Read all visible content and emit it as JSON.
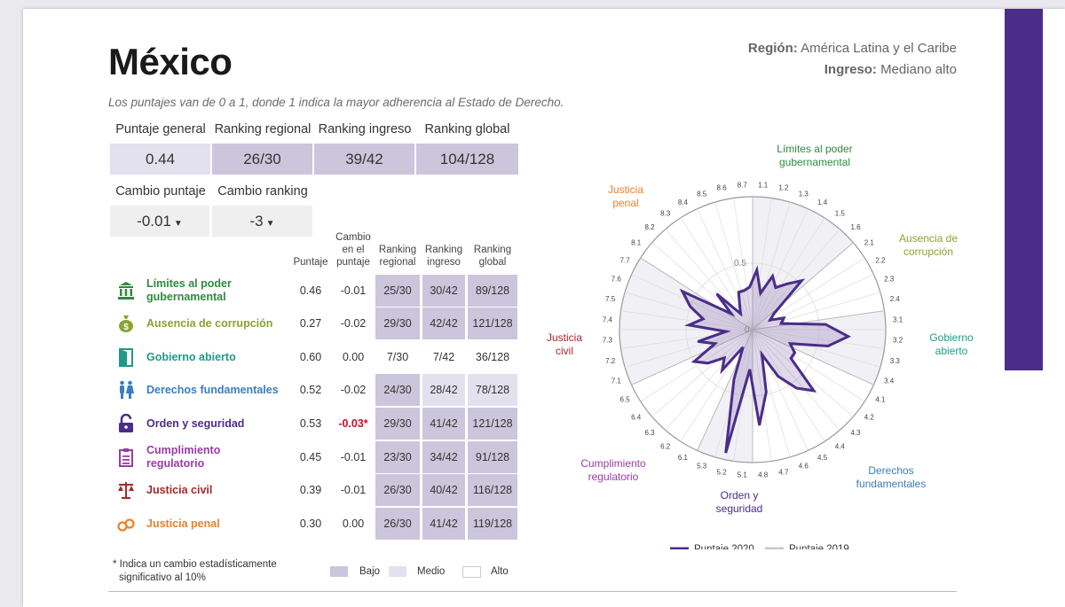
{
  "country": "México",
  "subtitle": "Los puntajes van de 0 a 1, donde 1 indica la mayor adherencia al Estado de Derecho.",
  "region": {
    "label": "Región:",
    "value": "América Latina y el Caribe"
  },
  "income": {
    "label": "Ingreso:",
    "value": "Mediano alto"
  },
  "summary": {
    "labels": [
      "Puntaje general",
      "Ranking regional",
      "Ranking ingreso",
      "Ranking global"
    ],
    "values": [
      "0.44",
      "26/30",
      "39/42",
      "104/128"
    ],
    "change_labels": [
      "Cambio puntaje",
      "Cambio ranking"
    ],
    "change_values": [
      "-0.01",
      "-3"
    ],
    "arrow": "▼"
  },
  "table_headers": {
    "score": "Puntaje",
    "change": [
      "Cambio",
      "en el",
      "puntaje"
    ],
    "regional": [
      "Ranking",
      "regional"
    ],
    "income": [
      "Ranking",
      "ingreso"
    ],
    "global": [
      "Ranking",
      "global"
    ]
  },
  "factors": [
    {
      "name": [
        "Límites al poder",
        "gubernamental"
      ],
      "score": "0.46",
      "change": "-0.01",
      "regional": "25/30",
      "income": "30/42",
      "global": "89/128"
    },
    {
      "name": [
        "Ausencia de corrupción"
      ],
      "score": "0.27",
      "change": "-0.02",
      "regional": "29/30",
      "income": "42/42",
      "global": "121/128"
    },
    {
      "name": [
        "Gobierno abierto"
      ],
      "score": "0.60",
      "change": "0.00",
      "regional": "7/30",
      "income": "7/42",
      "global": "36/128"
    },
    {
      "name": [
        "Derechos fundamentales"
      ],
      "score": "0.52",
      "change": "-0.02",
      "regional": "24/30",
      "income": "28/42",
      "global": "78/128"
    },
    {
      "name": [
        "Orden y seguridad"
      ],
      "score": "0.53",
      "change": "-0.03*",
      "regional": "29/30",
      "income": "41/42",
      "global": "121/128"
    },
    {
      "name": [
        "Cumplimiento",
        "regulatorio"
      ],
      "score": "0.45",
      "change": "-0.01",
      "regional": "23/30",
      "income": "34/42",
      "global": "91/128"
    },
    {
      "name": [
        "Justicia civil"
      ],
      "score": "0.39",
      "change": "-0.01",
      "regional": "26/30",
      "income": "40/42",
      "global": "116/128"
    },
    {
      "name": [
        "Justicia penal"
      ],
      "score": "0.30",
      "change": "0.00",
      "regional": "26/30",
      "income": "41/42",
      "global": "119/128"
    }
  ],
  "footnote": [
    "* Indica un cambio estadísticamente",
    "significativo al 10%"
  ],
  "legend": [
    "Bajo",
    "Medio",
    "Alto"
  ],
  "colors": {
    "accent_purple": "#4b2c8a",
    "factor_colors": [
      "#2e8b3e",
      "#8aa332",
      "#1f9a88",
      "#3a7dc0",
      "#4b2c8a",
      "#9c3aa8",
      "#a8282a",
      "#e8822a"
    ],
    "low": "#cbc6db",
    "mid": "#e4e1ee",
    "change_significant": "#c8102e"
  },
  "chart_data": {
    "type": "radar",
    "r_range": [
      0,
      1
    ],
    "gridline_label_values": [
      "0",
      "0.5"
    ],
    "axes": [
      "1.1",
      "1.2",
      "1.3",
      "1.4",
      "1.5",
      "1.6",
      "2.1",
      "2.2",
      "2.3",
      "2.4",
      "3.1",
      "3.2",
      "3.3",
      "3.4",
      "4.1",
      "4.2",
      "4.3",
      "4.4",
      "4.5",
      "4.6",
      "4.7",
      "4.8",
      "5.1",
      "5.2",
      "5.3",
      "6.1",
      "6.2",
      "6.3",
      "6.4",
      "6.5",
      "7.1",
      "7.2",
      "7.3",
      "7.4",
      "7.5",
      "7.6",
      "7.7",
      "8.1",
      "8.2",
      "8.3",
      "8.4",
      "8.5",
      "8.6",
      "8.7"
    ],
    "factor_labels": [
      {
        "lines": [
          "Límites al poder",
          "gubernamental"
        ],
        "color": "#2e8b3e"
      },
      {
        "lines": [
          "Ausencia de",
          "corrupción"
        ],
        "color": "#8aa332"
      },
      {
        "lines": [
          "Gobierno",
          "abierto"
        ],
        "color": "#1f9a88"
      },
      {
        "lines": [
          "Derechos",
          "fundamentales"
        ],
        "color": "#3a7dc0"
      },
      {
        "lines": [
          "Orden y",
          "seguridad"
        ],
        "color": "#4b2c8a"
      },
      {
        "lines": [
          "Cumplimiento",
          "regulatorio"
        ],
        "color": "#9c3aa8"
      },
      {
        "lines": [
          "Justicia",
          "civil"
        ],
        "color": "#a8282a"
      },
      {
        "lines": [
          "Justicia",
          "penal"
        ],
        "color": "#e8822a"
      }
    ],
    "series": [
      {
        "name": "Puntaje 2020",
        "color": "#4b2c8a",
        "values": [
          0.45,
          0.28,
          0.43,
          0.36,
          0.43,
          0.52,
          0.2,
          0.15,
          0.25,
          0.22,
          0.55,
          0.72,
          0.58,
          0.3,
          0.36,
          0.36,
          0.65,
          0.55,
          0.4,
          0.2,
          0.48,
          0.72,
          0.3,
          0.95,
          0.4,
          0.15,
          0.38,
          0.3,
          0.42,
          0.5,
          0.3,
          0.42,
          0.2,
          0.48,
          0.38,
          0.5,
          0.6,
          0.2,
          0.38,
          0.15,
          0.2,
          0.3,
          0.3,
          0.32
        ]
      },
      {
        "name": "Puntaje 2019",
        "color": "#c8c8c8",
        "values": [
          0.46,
          0.3,
          0.44,
          0.37,
          0.44,
          0.53,
          0.21,
          0.16,
          0.26,
          0.23,
          0.55,
          0.72,
          0.58,
          0.31,
          0.37,
          0.37,
          0.66,
          0.56,
          0.41,
          0.21,
          0.49,
          0.73,
          0.31,
          0.94,
          0.41,
          0.16,
          0.39,
          0.31,
          0.43,
          0.51,
          0.31,
          0.43,
          0.21,
          0.49,
          0.39,
          0.51,
          0.61,
          0.21,
          0.39,
          0.16,
          0.21,
          0.31,
          0.31,
          0.33
        ]
      }
    ],
    "legend": [
      "Puntaje 2020",
      "Puntaje 2019"
    ]
  }
}
